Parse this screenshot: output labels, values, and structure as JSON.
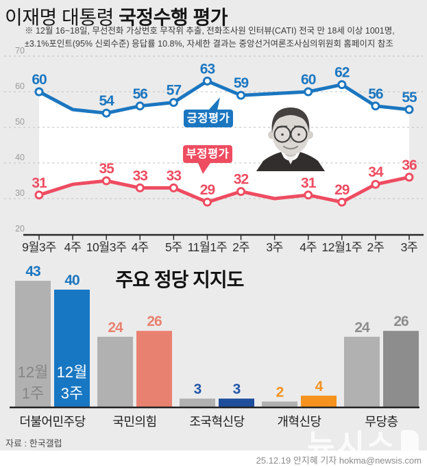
{
  "header": {
    "title_regular": "이재명 대통령 ",
    "title_bold": "국정수행 평가",
    "note_line1": "※ 12월 16~18일, 무선전화 가상번호 무작위 추출, 전화조사원 인터뷰(CATI) 전국 만 18세 이상 1001명,",
    "note_line2": "±3.1%포인트(95% 신뢰수준) 응답률 10.8%, 자세한 결과는 중앙선거여론조사심의위원회 홈페이지 참조"
  },
  "chart_data": [
    {
      "type": "line",
      "title": "이재명 대통령 국정수행 평가",
      "categories": [
        "9월3주",
        "4주",
        "10월3주",
        "4주",
        "5주",
        "11월1주",
        "2주",
        "3주",
        "4주",
        "12월1주",
        "2주",
        "3주"
      ],
      "ylim": [
        20,
        70
      ],
      "yticks": [
        20,
        30,
        40,
        50,
        60,
        70
      ],
      "grid": true,
      "legend_position": "callout-boxes-on-plot",
      "series": [
        {
          "name": "긍정평가",
          "color": "#1b76c0",
          "values": [
            60,
            55,
            54,
            56,
            57,
            63,
            59,
            59.5,
            60,
            62,
            56,
            55
          ],
          "labeled": [
            true,
            false,
            true,
            true,
            true,
            true,
            true,
            false,
            true,
            true,
            true,
            true
          ]
        },
        {
          "name": "부정평가",
          "color": "#ee4c61",
          "values": [
            31,
            34,
            35,
            33,
            33,
            29,
            32,
            30,
            31,
            29,
            34,
            36
          ],
          "labeled": [
            true,
            false,
            true,
            true,
            true,
            true,
            true,
            false,
            true,
            true,
            true,
            true
          ]
        }
      ]
    },
    {
      "type": "bar",
      "title": "주요 정당 지지도",
      "categories": [
        "더불어민주당",
        "국민의힘",
        "조국혁신당",
        "개혁신당",
        "무당층"
      ],
      "series": [
        {
          "name": "12월 1주",
          "values": [
            43,
            24,
            3,
            2,
            24
          ]
        },
        {
          "name": "12월 3주",
          "values": [
            40,
            26,
            3,
            4,
            26
          ]
        }
      ],
      "bar_colors": [
        [
          "#b1b1b1",
          "#b1b1b1",
          "#b1b1b1",
          "#b1b1b1",
          "#b1b1b1"
        ],
        [
          "#1877c2",
          "#e98171",
          "#1f4e9c",
          "#f6921e",
          "#8d8d8d"
        ]
      ],
      "value_label_colors": [
        "#1b76c0",
        "#e98171",
        "#2456a8",
        "#f6921e",
        "#8d8d8d"
      ],
      "in_bar_labels": [
        {
          "series": 0,
          "group": 0,
          "lines": [
            "12월",
            "1주"
          ],
          "color": "#858585"
        },
        {
          "series": 1,
          "group": 0,
          "lines": [
            "12월",
            "3주"
          ],
          "color": "#ffffff"
        }
      ],
      "ylim": [
        0,
        47
      ],
      "grid": false
    }
  ],
  "footer": {
    "source": "자료 : 한국갤럽",
    "watermark": "뉴시스",
    "credit": "25.12.19 안지혜 기자 hokma@newsis.com"
  },
  "colors": {
    "background": "#ebebeb",
    "band_fill": "#ffffff",
    "positive_blue": "#1b76c0",
    "negative_red": "#ee4c61",
    "gray_bar": "#b1b1b1",
    "independent_gray": "#8d8d8d",
    "ppp_salmon": "#e98171",
    "rebuilding_navy": "#1f4e9c",
    "reform_orange": "#f6921e"
  }
}
